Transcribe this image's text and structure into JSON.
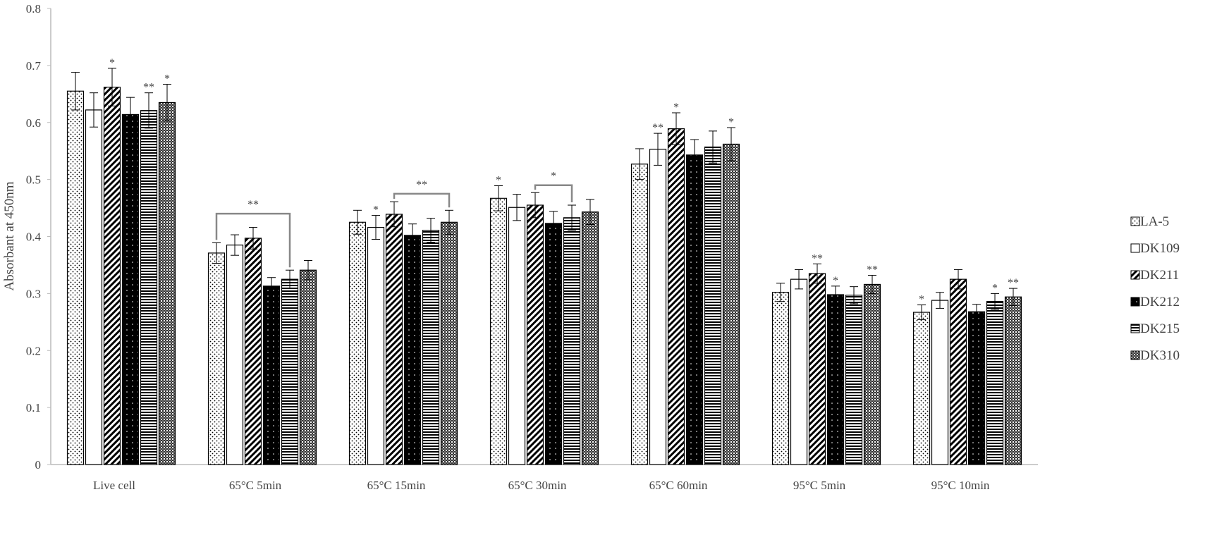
{
  "chart_data": {
    "type": "bar",
    "title": "",
    "xlabel": "",
    "ylabel": "Absorbant at 450nm",
    "ylim": [
      0,
      0.8
    ],
    "yticks": [
      "0",
      "0.1",
      "0.2",
      "0.3",
      "0.4",
      "0.5",
      "0.6",
      "0.7",
      "0.8"
    ],
    "grid": false,
    "legend_position": "right",
    "categories": [
      "Live cell",
      "65°C 5min",
      "65°C 15min",
      "65°C 30min",
      "65°C 60min",
      "95°C 5min",
      "95°C 10min"
    ],
    "series": [
      {
        "name": "LA-5",
        "pattern": "dots",
        "values": [
          0.655,
          0.371,
          0.425,
          0.467,
          0.527,
          0.302,
          0.267
        ],
        "errors": [
          0.033,
          0.018,
          0.021,
          0.022,
          0.027,
          0.016,
          0.013
        ]
      },
      {
        "name": "DK109",
        "pattern": "white",
        "values": [
          0.622,
          0.385,
          0.416,
          0.451,
          0.553,
          0.325,
          0.288
        ],
        "errors": [
          0.03,
          0.018,
          0.021,
          0.023,
          0.028,
          0.017,
          0.014
        ]
      },
      {
        "name": "DK211",
        "pattern": "diagonal",
        "values": [
          0.662,
          0.397,
          0.439,
          0.455,
          0.589,
          0.335,
          0.325
        ],
        "errors": [
          0.033,
          0.019,
          0.022,
          0.022,
          0.028,
          0.017,
          0.017
        ]
      },
      {
        "name": "DK212",
        "pattern": "black",
        "values": [
          0.614,
          0.313,
          0.402,
          0.423,
          0.543,
          0.298,
          0.268
        ],
        "errors": [
          0.03,
          0.015,
          0.02,
          0.021,
          0.027,
          0.015,
          0.013
        ]
      },
      {
        "name": "DK215",
        "pattern": "horizontal",
        "values": [
          0.621,
          0.325,
          0.411,
          0.433,
          0.557,
          0.297,
          0.286
        ],
        "errors": [
          0.031,
          0.016,
          0.021,
          0.022,
          0.028,
          0.015,
          0.014
        ]
      },
      {
        "name": "DK310",
        "pattern": "checker",
        "values": [
          0.635,
          0.341,
          0.425,
          0.443,
          0.562,
          0.316,
          0.294
        ],
        "errors": [
          0.032,
          0.017,
          0.021,
          0.022,
          0.029,
          0.016,
          0.015
        ]
      }
    ],
    "annotations": [
      {
        "category": 0,
        "series": 2,
        "text": "*"
      },
      {
        "category": 0,
        "series": 4,
        "text": "**"
      },
      {
        "category": 0,
        "series": 5,
        "text": "*"
      },
      {
        "category": 2,
        "series": 1,
        "text": "*"
      },
      {
        "category": 3,
        "series": 0,
        "text": "*"
      },
      {
        "category": 4,
        "series": 1,
        "text": "**"
      },
      {
        "category": 4,
        "series": 2,
        "text": "*"
      },
      {
        "category": 4,
        "series": 5,
        "text": "*"
      },
      {
        "category": 5,
        "series": 2,
        "text": "**"
      },
      {
        "category": 5,
        "series": 3,
        "text": "*"
      },
      {
        "category": 5,
        "series": 5,
        "text": "**"
      },
      {
        "category": 6,
        "series": 0,
        "text": "*"
      },
      {
        "category": 6,
        "series": 4,
        "text": "*"
      },
      {
        "category": 6,
        "series": 5,
        "text": "**"
      }
    ],
    "brackets": [
      {
        "category": 1,
        "from_series": 0,
        "to_series": 4,
        "level": 0.44,
        "text": "**"
      },
      {
        "category": 2,
        "from_series": 2,
        "to_series": 5,
        "level": 0.475,
        "text": "**"
      },
      {
        "category": 3,
        "from_series": 2,
        "to_series": 4,
        "level": 0.49,
        "text": "*"
      }
    ]
  }
}
